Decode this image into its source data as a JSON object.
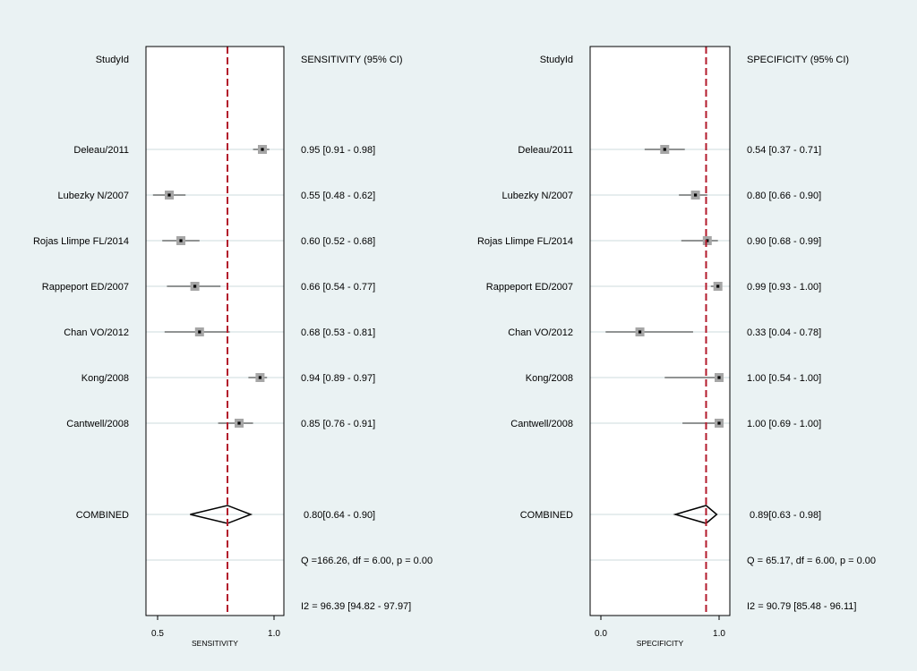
{
  "chart_data": [
    {
      "type": "forest",
      "header_left": "StudyId",
      "header_right": "SENSITIVITY (95% CI)",
      "xlabel": "SENSITIVITY",
      "xlim": [
        0.45,
        1.05
      ],
      "ticks": [
        "0.5",
        "1.0"
      ],
      "tick_values": [
        0.5,
        1.0
      ],
      "pooled_line": 0.8,
      "studies": [
        {
          "name": "Deleau/2011",
          "est": 0.95,
          "lo": 0.91,
          "hi": 0.98,
          "label": "0.95 [0.91 - 0.98]"
        },
        {
          "name": "Lubezky N/2007",
          "est": 0.55,
          "lo": 0.48,
          "hi": 0.62,
          "label": "0.55 [0.48 - 0.62]"
        },
        {
          "name": "Rojas Llimpe FL/2014",
          "est": 0.6,
          "lo": 0.52,
          "hi": 0.68,
          "label": "0.60 [0.52 - 0.68]"
        },
        {
          "name": "Rappeport ED/2007",
          "est": 0.66,
          "lo": 0.54,
          "hi": 0.77,
          "label": "0.66 [0.54 - 0.77]"
        },
        {
          "name": "Chan VO/2012",
          "est": 0.68,
          "lo": 0.53,
          "hi": 0.81,
          "label": "0.68 [0.53 - 0.81]"
        },
        {
          "name": "Kong/2008",
          "est": 0.94,
          "lo": 0.89,
          "hi": 0.97,
          "label": "0.94 [0.89 - 0.97]"
        },
        {
          "name": "Cantwell/2008",
          "est": 0.85,
          "lo": 0.76,
          "hi": 0.91,
          "label": "0.85 [0.76 - 0.91]"
        }
      ],
      "combined": {
        "name": "COMBINED",
        "est": 0.8,
        "lo": 0.64,
        "hi": 0.9,
        "label": "0.80[0.64 - 0.90]"
      },
      "heterogeneity_q": "Q =166.26, df = 6.00, p =  0.00",
      "heterogeneity_i2": "I2 = 96.39 [94.82 - 97.97]"
    },
    {
      "type": "forest",
      "header_left": "StudyId",
      "header_right": "SPECIFICITY (95% CI)",
      "xlabel": "SPECIFICITY",
      "xlim": [
        -0.08,
        1.08
      ],
      "ticks": [
        "0.0",
        "1.0"
      ],
      "tick_values": [
        0.0,
        1.0
      ],
      "pooled_line": 0.89,
      "studies": [
        {
          "name": "Deleau/2011",
          "est": 0.54,
          "lo": 0.37,
          "hi": 0.71,
          "label": "0.54 [0.37 - 0.71]"
        },
        {
          "name": "Lubezky N/2007",
          "est": 0.8,
          "lo": 0.66,
          "hi": 0.9,
          "label": "0.80 [0.66 - 0.90]"
        },
        {
          "name": "Rojas Llimpe FL/2014",
          "est": 0.9,
          "lo": 0.68,
          "hi": 0.99,
          "label": "0.90 [0.68 - 0.99]"
        },
        {
          "name": "Rappeport ED/2007",
          "est": 0.99,
          "lo": 0.93,
          "hi": 1.0,
          "label": "0.99 [0.93 - 1.00]"
        },
        {
          "name": "Chan VO/2012",
          "est": 0.33,
          "lo": 0.04,
          "hi": 0.78,
          "label": "0.33 [0.04 - 0.78]"
        },
        {
          "name": "Kong/2008",
          "est": 1.0,
          "lo": 0.54,
          "hi": 1.0,
          "label": "1.00 [0.54 - 1.00]"
        },
        {
          "name": "Cantwell/2008",
          "est": 1.0,
          "lo": 0.69,
          "hi": 1.0,
          "label": "1.00 [0.69 - 1.00]"
        }
      ],
      "combined": {
        "name": "COMBINED",
        "est": 0.89,
        "lo": 0.63,
        "hi": 0.98,
        "label": "0.89[0.63 - 0.98]"
      },
      "heterogeneity_q": "Q = 65.17, df = 6.00, p =  0.00",
      "heterogeneity_i2": "I2 = 90.79 [85.48 - 96.11]"
    }
  ],
  "colors": {
    "background": "#eaf2f3",
    "panel": "#ffffff",
    "pooled_line": "#b31b2c",
    "box": "#a6a6a6",
    "grid": "#dde7e8"
  }
}
